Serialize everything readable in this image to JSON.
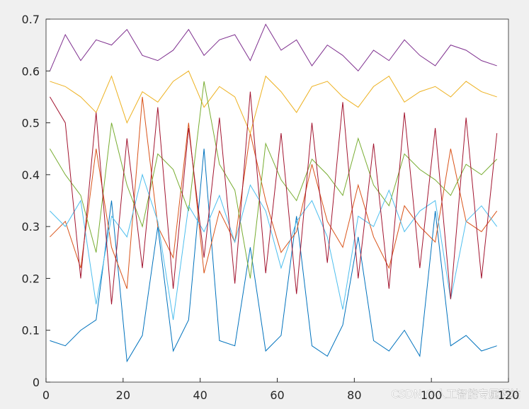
{
  "chart_data": {
    "type": "line",
    "x": [
      1,
      5,
      9,
      13,
      17,
      21,
      25,
      29,
      33,
      37,
      41,
      45,
      49,
      53,
      57,
      61,
      65,
      69,
      73,
      77,
      81,
      85,
      89,
      93,
      97,
      101,
      105,
      109,
      113,
      117
    ],
    "series": [
      {
        "color": "#7E2F8E",
        "values": [
          0.6,
          0.67,
          0.62,
          0.66,
          0.65,
          0.68,
          0.63,
          0.62,
          0.64,
          0.68,
          0.63,
          0.66,
          0.67,
          0.62,
          0.69,
          0.64,
          0.66,
          0.61,
          0.65,
          0.63,
          0.6,
          0.64,
          0.62,
          0.66,
          0.63,
          0.61,
          0.65,
          0.64,
          0.62,
          0.61
        ]
      },
      {
        "color": "#0072BD",
        "values": [
          0.08,
          0.07,
          0.1,
          0.12,
          0.35,
          0.04,
          0.09,
          0.3,
          0.06,
          0.12,
          0.45,
          0.08,
          0.07,
          0.26,
          0.06,
          0.09,
          0.32,
          0.07,
          0.05,
          0.11,
          0.28,
          0.08,
          0.06,
          0.1,
          0.05,
          0.33,
          0.07,
          0.09,
          0.06,
          0.07
        ]
      },
      {
        "color": "#D95319",
        "values": [
          0.28,
          0.31,
          0.22,
          0.45,
          0.26,
          0.18,
          0.55,
          0.3,
          0.24,
          0.5,
          0.21,
          0.33,
          0.27,
          0.48,
          0.35,
          0.25,
          0.29,
          0.42,
          0.31,
          0.26,
          0.38,
          0.28,
          0.22,
          0.34,
          0.3,
          0.27,
          0.45,
          0.31,
          0.29,
          0.33
        ]
      },
      {
        "color": "#EDB120",
        "values": [
          0.58,
          0.57,
          0.55,
          0.52,
          0.59,
          0.5,
          0.56,
          0.54,
          0.58,
          0.6,
          0.53,
          0.57,
          0.55,
          0.48,
          0.59,
          0.56,
          0.52,
          0.57,
          0.58,
          0.55,
          0.53,
          0.57,
          0.59,
          0.54,
          0.56,
          0.57,
          0.55,
          0.58,
          0.56,
          0.55
        ]
      },
      {
        "color": "#77AC30",
        "values": [
          0.45,
          0.4,
          0.36,
          0.25,
          0.5,
          0.38,
          0.3,
          0.44,
          0.41,
          0.33,
          0.58,
          0.42,
          0.37,
          0.2,
          0.46,
          0.39,
          0.35,
          0.43,
          0.4,
          0.36,
          0.47,
          0.38,
          0.34,
          0.44,
          0.41,
          0.39,
          0.36,
          0.42,
          0.4,
          0.43
        ]
      },
      {
        "color": "#4DBEEE",
        "values": [
          0.33,
          0.3,
          0.35,
          0.15,
          0.32,
          0.28,
          0.4,
          0.31,
          0.12,
          0.34,
          0.29,
          0.36,
          0.27,
          0.38,
          0.33,
          0.22,
          0.31,
          0.35,
          0.28,
          0.14,
          0.32,
          0.3,
          0.37,
          0.29,
          0.33,
          0.35,
          0.16,
          0.31,
          0.34,
          0.3
        ]
      },
      {
        "color": "#A2142F",
        "values": [
          0.55,
          0.5,
          0.2,
          0.52,
          0.15,
          0.47,
          0.22,
          0.53,
          0.18,
          0.49,
          0.24,
          0.51,
          0.19,
          0.56,
          0.21,
          0.48,
          0.17,
          0.5,
          0.23,
          0.54,
          0.2,
          0.46,
          0.18,
          0.52,
          0.22,
          0.49,
          0.16,
          0.51,
          0.2,
          0.48
        ]
      }
    ],
    "xlim": [
      0,
      120
    ],
    "xticks": [
      0,
      20,
      40,
      60,
      80,
      100,
      120
    ],
    "ylim": [
      0,
      0.7
    ],
    "yticks": [
      0,
      0.1,
      0.2,
      0.3,
      0.4,
      0.5,
      0.6,
      0.7
    ],
    "watermark": "CSDN @人工智能专属驿站"
  }
}
